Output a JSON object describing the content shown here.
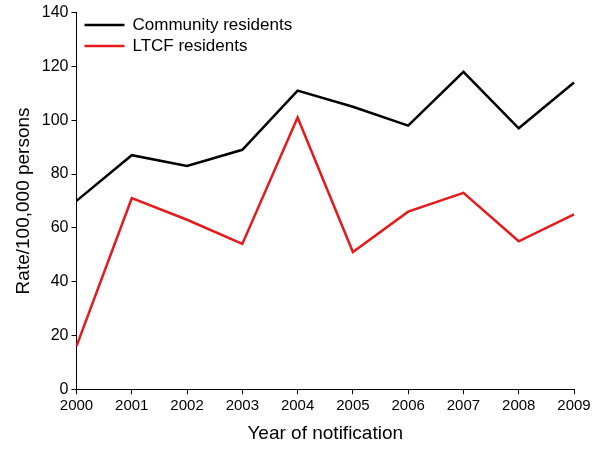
{
  "chart_data": {
    "type": "line",
    "x_label": "Year of notification",
    "y_label": "Rate/100,000 persons",
    "categories": [
      "2000",
      "2001",
      "2002",
      "2003",
      "2004",
      "2005",
      "2006",
      "2007",
      "2008",
      "2009"
    ],
    "series": [
      {
        "name": "Community residents",
        "color": "#000000",
        "values": [
          70,
          87,
          83,
          89,
          111,
          105,
          98,
          118,
          97,
          114
        ]
      },
      {
        "name": "LTCF residents",
        "color": "#e41a1c",
        "values": [
          16,
          71,
          63,
          54,
          101,
          51,
          66,
          73,
          55,
          65
        ]
      }
    ],
    "ylim": [
      0,
      140
    ],
    "yticks": [
      0,
      20,
      40,
      60,
      80,
      100,
      120,
      140
    ],
    "grid": false,
    "legend": "top-left"
  }
}
